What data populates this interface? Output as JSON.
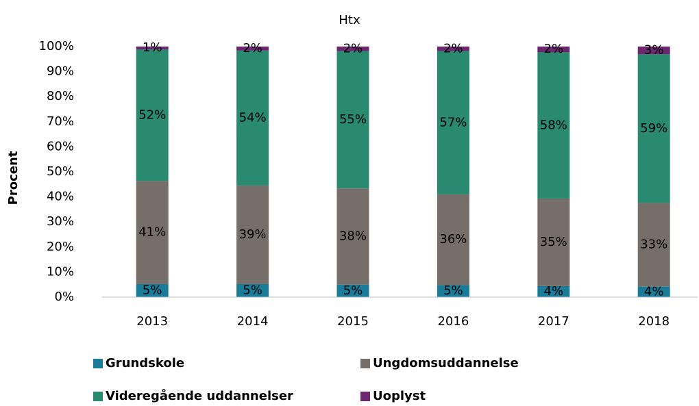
{
  "chart_data": {
    "type": "stacked_bar",
    "title": "Htx",
    "y_label": "Procent",
    "categories": [
      "2013",
      "2014",
      "2015",
      "2016",
      "2017",
      "2018"
    ],
    "series": [
      {
        "name": "Grundskole",
        "color": "#1a7c98",
        "values": [
          5.2,
          5.2,
          5.0,
          4.8,
          4.4,
          4.2
        ],
        "value_labels": [
          "5%",
          "5%",
          "5%",
          "5%",
          "4%",
          "4%"
        ]
      },
      {
        "name": "Ungdomsuddannelse",
        "color": "#756e69",
        "values": [
          41.2,
          39.3,
          38.4,
          36.2,
          34.9,
          33.4
        ],
        "value_labels": [
          "41%",
          "39%",
          "38%",
          "36%",
          "35%",
          "33%"
        ]
      },
      {
        "name": "Videregående uddannelser",
        "color": "#2a8a6f",
        "values": [
          52.4,
          53.9,
          54.8,
          57.2,
          58.4,
          59.3
        ],
        "value_labels": [
          "52%",
          "54%",
          "55%",
          "57%",
          "58%",
          "59%"
        ]
      },
      {
        "name": "Uoplyst",
        "color": "#6b2770",
        "values": [
          1.2,
          1.6,
          1.8,
          1.8,
          2.3,
          3.1
        ],
        "value_labels": [
          "1%",
          "2%",
          "2%",
          "2%",
          "2%",
          "3%"
        ]
      }
    ],
    "ylim": [
      0,
      100
    ],
    "yticks": [
      {
        "value": 0,
        "label": "0%"
      },
      {
        "value": 10,
        "label": "10%"
      },
      {
        "value": 20,
        "label": "20%"
      },
      {
        "value": 30,
        "label": "30%"
      },
      {
        "value": 40,
        "label": "40%"
      },
      {
        "value": 50,
        "label": "50%"
      },
      {
        "value": 60,
        "label": "60%"
      },
      {
        "value": 70,
        "label": "70%"
      },
      {
        "value": 80,
        "label": "80%"
      },
      {
        "value": 90,
        "label": "90%"
      },
      {
        "value": 100,
        "label": "100%"
      }
    ],
    "grid": false,
    "legend": "bottom"
  }
}
